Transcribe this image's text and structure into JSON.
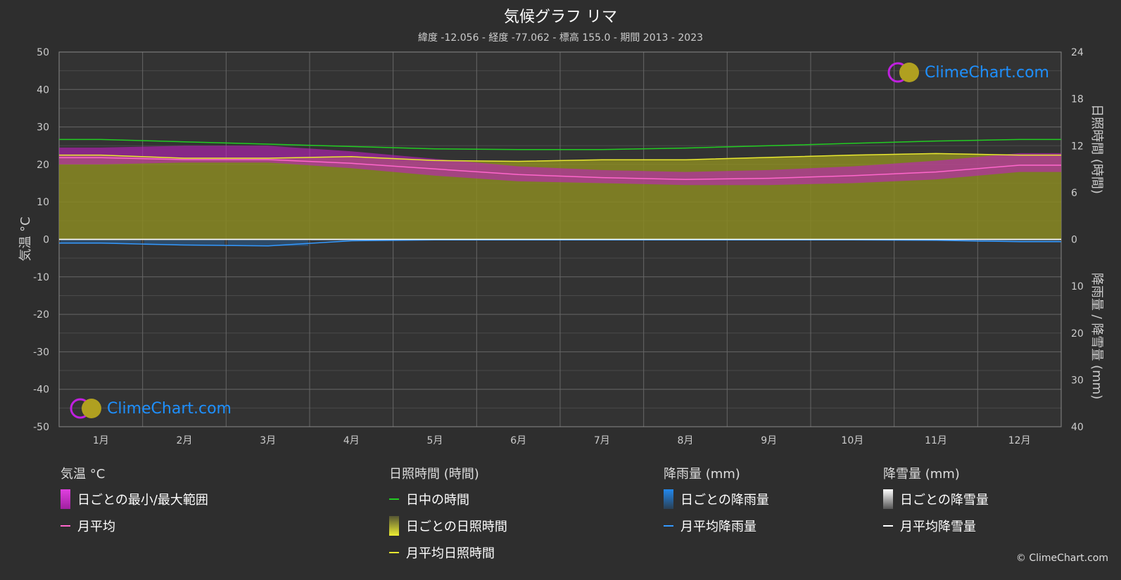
{
  "header": {
    "title": "気候グラフ リマ",
    "subtitle": "緯度 -12.056 - 経度 -77.062 - 標高 155.0 - 期間 2013 - 2023"
  },
  "axes": {
    "left_title": "気温 °C",
    "right_top_title": "日照時間 (時間)",
    "right_bottom_title": "降雨量 / 降雪量 (mm)"
  },
  "logo_text": "ClimeChart.com",
  "copyright": "© ClimeChart.com",
  "chart_data": {
    "type": "line",
    "categories": [
      "1月",
      "2月",
      "3月",
      "4月",
      "5月",
      "6月",
      "7月",
      "8月",
      "9月",
      "10月",
      "11月",
      "12月"
    ],
    "y_left": {
      "label": "気温 °C",
      "ylim": [
        -50,
        50
      ],
      "ticks": [
        50,
        40,
        30,
        20,
        10,
        0,
        -10,
        -20,
        -30,
        -40,
        -50
      ]
    },
    "y_right_sun": {
      "label": "日照時間 (時間)",
      "ylim": [
        0,
        24
      ],
      "ticks": [
        24,
        18,
        12,
        6,
        0
      ]
    },
    "y_right_precip": {
      "label": "降雨量 / 降雪量 (mm)",
      "ylim": [
        0,
        40
      ],
      "ticks": [
        0,
        10,
        20,
        30,
        40
      ]
    },
    "grid": true,
    "series": [
      {
        "name": "日中の時間",
        "axis": "sun",
        "color": "#22cc22",
        "values": [
          12.8,
          12.5,
          12.2,
          11.9,
          11.6,
          11.5,
          11.5,
          11.7,
          12.0,
          12.3,
          12.6,
          12.8
        ]
      },
      {
        "name": "月平均日照時間",
        "axis": "sun",
        "color": "#e8e830",
        "values": [
          10.8,
          10.4,
          10.4,
          10.6,
          10.1,
          10.0,
          10.2,
          10.2,
          10.5,
          10.8,
          11.0,
          10.8
        ]
      },
      {
        "name": "月平均",
        "axis": "temp",
        "color": "#ff66cc",
        "values": [
          21.8,
          21.3,
          21.3,
          20.3,
          18.8,
          17.3,
          16.5,
          16.0,
          16.3,
          17.0,
          18.0,
          19.8
        ]
      },
      {
        "name": "月平均降雨量",
        "axis": "precip",
        "color": "#3399ff",
        "values": [
          0.8,
          1.2,
          1.4,
          0.3,
          0.1,
          0.1,
          0.1,
          0.1,
          0.1,
          0.1,
          0.2,
          0.5
        ]
      },
      {
        "name": "月平均降雪量",
        "axis": "precip",
        "color": "#ffffff",
        "values": [
          0,
          0,
          0,
          0,
          0,
          0,
          0,
          0,
          0,
          0,
          0,
          0
        ]
      }
    ],
    "daily_range": {
      "name": "日ごとの最小/最大範囲",
      "min": [
        20.0,
        20.5,
        20.5,
        19.0,
        17.0,
        15.5,
        15.0,
        14.5,
        14.5,
        15.0,
        16.0,
        18.0
      ],
      "max": [
        24.5,
        25.0,
        25.0,
        23.5,
        21.5,
        19.5,
        18.5,
        18.0,
        18.5,
        19.5,
        21.0,
        23.0
      ]
    }
  },
  "legend": {
    "temp": {
      "title": "気温 °C",
      "range": "日ごとの最小/最大範囲",
      "avg": "月平均"
    },
    "sun": {
      "title": "日照時間 (時間)",
      "daylight": "日中の時間",
      "daily": "日ごとの日照時間",
      "avg": "月平均日照時間"
    },
    "rain": {
      "title": "降雨量 (mm)",
      "daily": "日ごとの降雨量",
      "avg": "月平均降雨量"
    },
    "snow": {
      "title": "降雪量 (mm)",
      "daily": "日ごとの降雪量",
      "avg": "月平均降雪量"
    }
  },
  "colors": {
    "background": "#2e2e2e",
    "plot": "#333333",
    "grid": "#555555",
    "sunshine_fill": "#8a8a22",
    "temp_range": "#c020c0"
  }
}
